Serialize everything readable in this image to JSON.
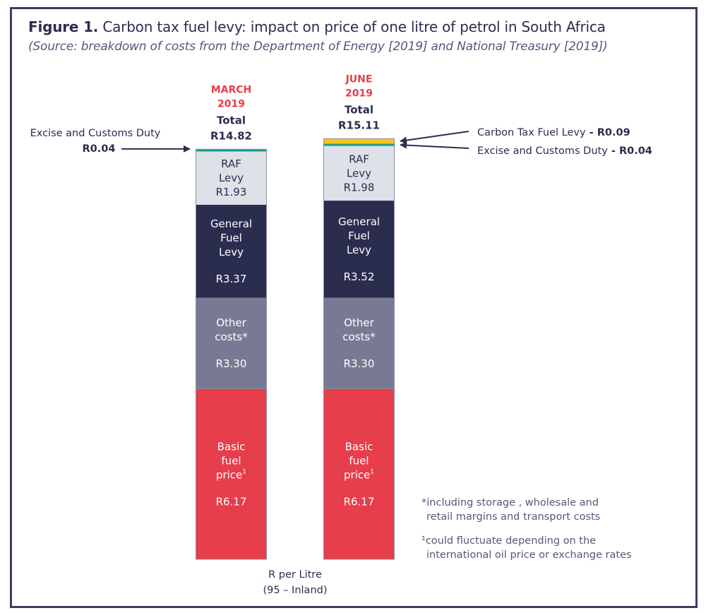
{
  "figure": {
    "label": "Figure 1.",
    "title": " Carbon tax fuel levy: impact on price of one litre of petrol in South Africa",
    "subtitle": "(Source: breakdown of costs from the Department of Energy [2019] and National Treasury [2019])"
  },
  "colors": {
    "basic_fuel": "#e63e4a",
    "other_costs": "#787a93",
    "general_fuel_levy": "#2b2d4f",
    "raf_levy": "#dfe1e8",
    "excise_customs": "#1e9b8c",
    "carbon_tax": "#f5c518",
    "period_label": "#e63e4a",
    "frame": "#3b3d63"
  },
  "chart_data": {
    "type": "bar",
    "stacked": true,
    "title": "Carbon tax fuel levy: impact on price of one litre of petrol in South Africa",
    "xlabel": "R per Litre (95 – Inland)",
    "unit": "R per litre",
    "categories": [
      "MARCH 2019",
      "JUNE 2019"
    ],
    "category_lines": [
      [
        "MARCH",
        "2019"
      ],
      [
        "JUNE",
        "2019"
      ]
    ],
    "totals": [
      14.82,
      15.11
    ],
    "total_labels": [
      "R14.82",
      "R15.11"
    ],
    "total_caption": "Total",
    "series": [
      {
        "key": "basic_fuel",
        "name": "Basic fuel price",
        "label_lines": [
          "Basic",
          "fuel",
          "price¹"
        ],
        "values": [
          6.17,
          6.17
        ],
        "value_labels": [
          "R6.17",
          "R6.17"
        ],
        "text_color": "#ffffff"
      },
      {
        "key": "other_costs",
        "name": "Other costs*",
        "label_lines": [
          "Other",
          "costs*"
        ],
        "values": [
          3.3,
          3.3
        ],
        "value_labels": [
          "R3.30",
          "R3.30"
        ],
        "text_color": "#ffffff"
      },
      {
        "key": "general_fuel_levy",
        "name": "General Fuel Levy",
        "label_lines": [
          "General",
          "Fuel",
          "Levy"
        ],
        "values": [
          3.37,
          3.52
        ],
        "value_labels": [
          "R3.37",
          "R3.52"
        ],
        "text_color": "#ffffff"
      },
      {
        "key": "raf_levy",
        "name": "RAF Levy",
        "label_lines": [
          "RAF",
          "Levy"
        ],
        "values": [
          1.93,
          1.98
        ],
        "value_labels": [
          "R1.93",
          "R1.98"
        ],
        "text_color": "#2b2d4f"
      },
      {
        "key": "excise_customs",
        "name": "Excise and Customs Duty",
        "label_lines": [],
        "values": [
          0.04,
          0.04
        ],
        "value_labels": [
          "R0.04",
          "R0.04"
        ],
        "text_color": "#2b2d4f"
      },
      {
        "key": "carbon_tax",
        "name": "Carbon Tax Fuel Levy",
        "label_lines": [],
        "values": [
          0,
          0.09
        ],
        "value_labels": [
          "",
          "R0.09"
        ],
        "text_color": "#2b2d4f"
      }
    ],
    "annotations": [
      {
        "bar": 0,
        "series": "excise_customs",
        "side": "left",
        "text": "Excise and Customs Duty",
        "value": "R0.04"
      },
      {
        "bar": 1,
        "series": "carbon_tax",
        "side": "right",
        "text": "Carbon Tax Fuel Levy",
        "separator": " - ",
        "value": "R0.09"
      },
      {
        "bar": 1,
        "series": "excise_customs",
        "side": "right",
        "text": "Excise and Customs Duty",
        "separator": " - ",
        "value": "R0.04"
      }
    ],
    "xlabel_lines": [
      "R per Litre",
      "(95 – Inland)"
    ],
    "legend": "none",
    "grid": false
  },
  "footnotes": {
    "asterisk_line1": "*including storage , wholesale  and",
    "asterisk_line2": "retail margins and transport costs",
    "one_line1": "¹could fluctuate depending on the",
    "one_line2": "international oil price or exchange rates"
  }
}
